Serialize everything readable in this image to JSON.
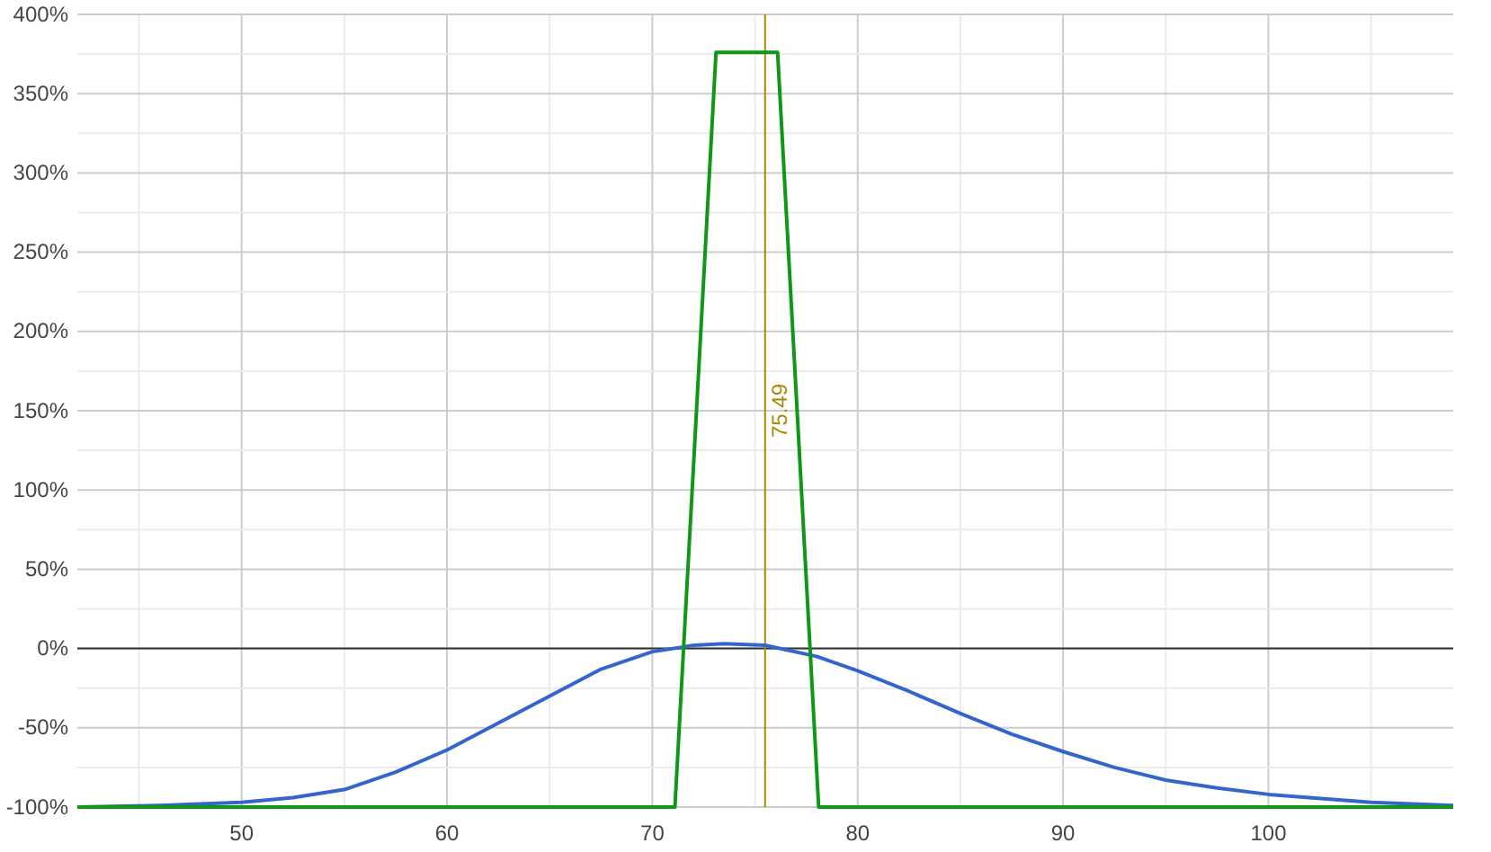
{
  "chart_data": {
    "type": "line",
    "xlim": [
      42,
      109
    ],
    "xticks": [
      50,
      60,
      70,
      80,
      90,
      100
    ],
    "ylim": [
      -100,
      400
    ],
    "yticks": [
      {
        "value": -100,
        "label": "-100%"
      },
      {
        "value": -50,
        "label": "-50%"
      },
      {
        "value": 0,
        "label": "0%"
      },
      {
        "value": 50,
        "label": "50%"
      },
      {
        "value": 100,
        "label": "100%"
      },
      {
        "value": 150,
        "label": "150%"
      },
      {
        "value": 200,
        "label": "200%"
      },
      {
        "value": 250,
        "label": "250%"
      },
      {
        "value": 300,
        "label": "300%"
      },
      {
        "value": 350,
        "label": "350%"
      },
      {
        "value": 400,
        "label": "400%"
      }
    ],
    "grid": true,
    "marker": "none",
    "line_style": "solid",
    "series": [
      {
        "color": "#3366cc",
        "x": [
          42,
          46,
          48,
          50,
          52.5,
          55,
          57.5,
          60,
          62.5,
          65,
          67.5,
          70,
          72,
          73.5,
          75.5,
          78,
          80,
          82.5,
          85,
          87.5,
          90,
          92.5,
          95,
          97.5,
          100,
          105,
          109
        ],
        "values": [
          -100,
          -99,
          -98,
          -97,
          -94,
          -89,
          -78,
          -64,
          -47,
          -30,
          -13,
          -2,
          2,
          3,
          2,
          -5,
          -14,
          -27,
          -41,
          -54,
          -65,
          -75,
          -83,
          -88,
          -92,
          -97,
          -99
        ]
      },
      {
        "color": "#109618",
        "x": [
          42,
          71.1,
          73.1,
          76.1,
          78.1,
          109
        ],
        "values": [
          -100,
          -100,
          376,
          376,
          -100,
          -100
        ]
      }
    ],
    "ref_lines": [
      {
        "axis": "y",
        "value": 0,
        "label": null,
        "color": "#333333"
      },
      {
        "axis": "x",
        "value": 75.49,
        "label": "75.49",
        "color": "#aa8800"
      }
    ]
  }
}
